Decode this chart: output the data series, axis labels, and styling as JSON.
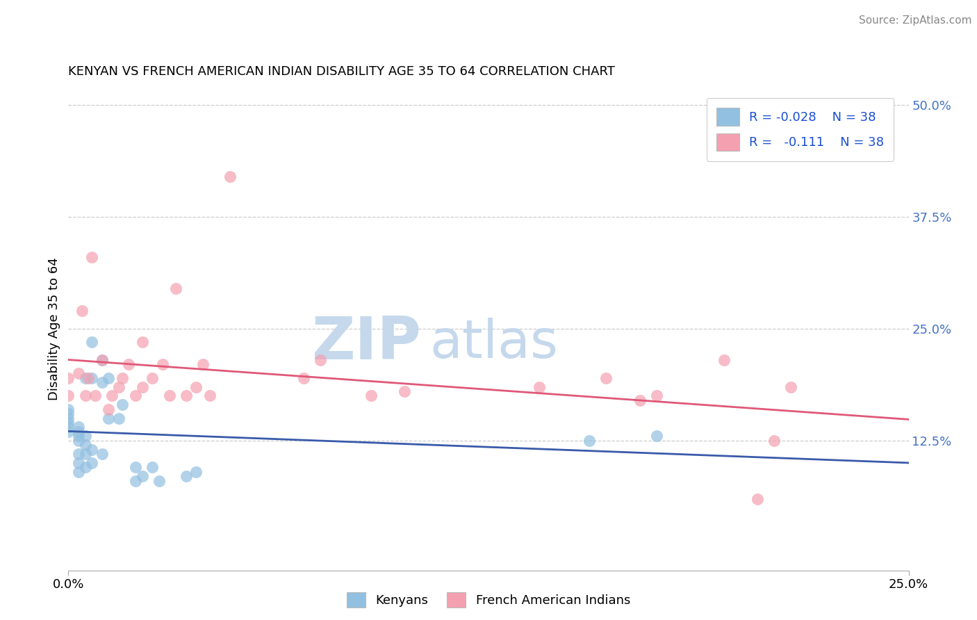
{
  "title": "KENYAN VS FRENCH AMERICAN INDIAN DISABILITY AGE 35 TO 64 CORRELATION CHART",
  "source": "Source: ZipAtlas.com",
  "ylabel_label": "Disability Age 35 to 64",
  "xlim": [
    0.0,
    0.25
  ],
  "ylim": [
    -0.02,
    0.52
  ],
  "legend_blue_r": "R = -0.028",
  "legend_blue_n": "N = 38",
  "legend_pink_r": "R =   -0.111",
  "legend_pink_n": "N = 38",
  "color_blue": "#92c0e0",
  "color_pink": "#f4a0b0",
  "color_blue_line": "#3a5aaa",
  "color_pink_line": "#e05878",
  "watermark_zip": "ZIP",
  "watermark_atlas": "atlas",
  "watermark_color_zip": "#c5d8ec",
  "watermark_color_atlas": "#c5d8ec",
  "grid_color": "#cccccc",
  "ytick_color": "#4472c4",
  "kenyans_x": [
    0.0,
    0.0,
    0.0,
    0.0,
    0.0,
    0.0,
    0.003,
    0.003,
    0.003,
    0.003,
    0.003,
    0.003,
    0.003,
    0.005,
    0.005,
    0.005,
    0.005,
    0.005,
    0.007,
    0.007,
    0.007,
    0.007,
    0.01,
    0.01,
    0.01,
    0.012,
    0.012,
    0.015,
    0.016,
    0.02,
    0.02,
    0.022,
    0.025,
    0.027,
    0.035,
    0.038,
    0.155,
    0.175
  ],
  "kenyans_y": [
    0.135,
    0.14,
    0.145,
    0.15,
    0.155,
    0.16,
    0.09,
    0.1,
    0.11,
    0.125,
    0.13,
    0.135,
    0.14,
    0.095,
    0.11,
    0.12,
    0.13,
    0.195,
    0.1,
    0.115,
    0.195,
    0.235,
    0.11,
    0.19,
    0.215,
    0.15,
    0.195,
    0.15,
    0.165,
    0.08,
    0.095,
    0.085,
    0.095,
    0.08,
    0.085,
    0.09,
    0.125,
    0.13
  ],
  "french_x": [
    0.0,
    0.0,
    0.003,
    0.004,
    0.005,
    0.006,
    0.007,
    0.008,
    0.01,
    0.012,
    0.013,
    0.015,
    0.016,
    0.018,
    0.02,
    0.022,
    0.022,
    0.025,
    0.028,
    0.03,
    0.032,
    0.035,
    0.038,
    0.04,
    0.042,
    0.048,
    0.07,
    0.075,
    0.09,
    0.1,
    0.14,
    0.16,
    0.17,
    0.175,
    0.195,
    0.205,
    0.21,
    0.215
  ],
  "french_y": [
    0.175,
    0.195,
    0.2,
    0.27,
    0.175,
    0.195,
    0.33,
    0.175,
    0.215,
    0.16,
    0.175,
    0.185,
    0.195,
    0.21,
    0.175,
    0.185,
    0.235,
    0.195,
    0.21,
    0.175,
    0.295,
    0.175,
    0.185,
    0.21,
    0.175,
    0.42,
    0.195,
    0.215,
    0.175,
    0.18,
    0.185,
    0.195,
    0.17,
    0.175,
    0.215,
    0.06,
    0.125,
    0.185
  ]
}
